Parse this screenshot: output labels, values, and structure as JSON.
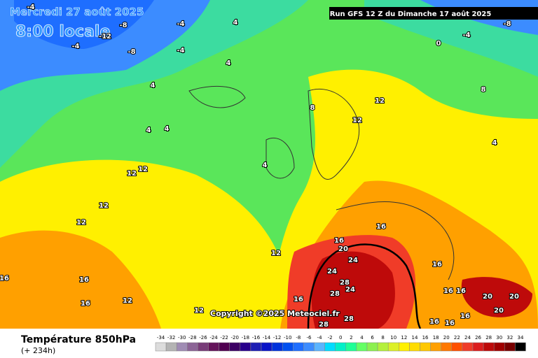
{
  "header": {
    "date": "Mercredi 27 août 2025",
    "local_time": "8:00 locale",
    "run": "Run GFS 12 Z du Dimanche 17 août 2025"
  },
  "footer": {
    "field": "Température 850hPa",
    "lead": "(+ 234h)",
    "copyright": "Copyright ©2025 Meteociel.fr"
  },
  "contour_labels": [
    -4,
    -8,
    -12,
    -4,
    -8,
    -4,
    -4,
    4,
    -8,
    -4,
    0,
    4,
    4,
    8,
    12,
    12,
    8,
    4,
    4,
    12,
    12,
    12,
    12,
    16,
    20,
    16,
    24,
    24,
    28,
    24,
    28,
    16,
    16,
    16,
    20,
    20,
    20,
    16,
    16,
    16,
    12,
    12,
    16,
    28,
    28,
    16,
    16,
    16,
    12,
    4,
    4
  ],
  "scale": {
    "values": [
      -34,
      -32,
      -30,
      -28,
      -26,
      -24,
      -22,
      -20,
      -18,
      -16,
      -14,
      -12,
      -10,
      -8,
      -6,
      -4,
      -2,
      0,
      2,
      4,
      6,
      8,
      10,
      12,
      14,
      16,
      18,
      20,
      22,
      24,
      26,
      28,
      30,
      32,
      34
    ],
    "colors": [
      "#dcdcdc",
      "#b4b4b4",
      "#a08cb4",
      "#8c6496",
      "#783c78",
      "#64145a",
      "#500050",
      "#3c0064",
      "#28008c",
      "#1e1eb4",
      "#0a14c8",
      "#0032dc",
      "#0050f0",
      "#1e6eff",
      "#3c8cff",
      "#5ab4ff",
      "#00dcff",
      "#00f0c8",
      "#1eff96",
      "#64ff64",
      "#8cf050",
      "#b4f03c",
      "#dcf028",
      "#fff000",
      "#ffdc00",
      "#ffc800",
      "#ffa000",
      "#ff7800",
      "#ff5000",
      "#f03c28",
      "#dc1e1e",
      "#be0a0a",
      "#a00000",
      "#780000",
      "#000000"
    ]
  }
}
